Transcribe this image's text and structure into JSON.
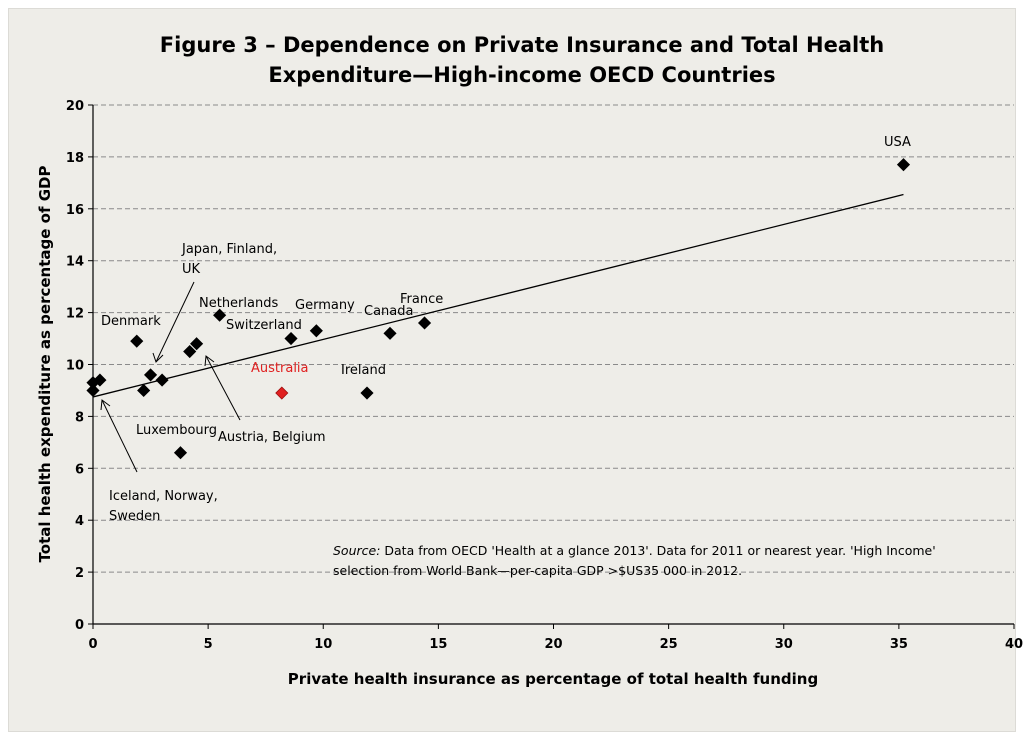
{
  "chart_data": {
    "type": "scatter",
    "title_line1": "Figure 3 – Dependence on Private Insurance and Total Health",
    "title_line2": "Expenditure—High-income OECD Countries",
    "xlabel": "Private health insurance as percentage of total health funding",
    "ylabel": "Total health expenditure as percentage of GDP",
    "xlim": [
      0,
      40
    ],
    "ylim": [
      0,
      20
    ],
    "x_ticks": [
      "0",
      "5",
      "10",
      "15",
      "20",
      "25",
      "30",
      "35",
      "40"
    ],
    "y_ticks": [
      "0",
      "2",
      "4",
      "6",
      "8",
      "10",
      "12",
      "14",
      "16",
      "18",
      "20"
    ],
    "grid": "horizontal dashed",
    "point_color": "#000000",
    "highlight_color": "#e02020",
    "points": [
      {
        "x": 35.2,
        "y": 17.7
      },
      {
        "x": 14.4,
        "y": 11.6
      },
      {
        "x": 12.9,
        "y": 11.2
      },
      {
        "x": 9.7,
        "y": 11.3
      },
      {
        "x": 8.6,
        "y": 11.0
      },
      {
        "x": 5.5,
        "y": 11.9
      },
      {
        "x": 4.5,
        "y": 10.8
      },
      {
        "x": 4.2,
        "y": 10.5
      },
      {
        "x": 1.9,
        "y": 10.9
      },
      {
        "x": 2.5,
        "y": 9.6
      },
      {
        "x": 3.0,
        "y": 9.4
      },
      {
        "x": 2.2,
        "y": 9.0
      },
      {
        "x": 0.0,
        "y": 9.0
      },
      {
        "x": 0.0,
        "y": 9.3
      },
      {
        "x": 0.3,
        "y": 9.4
      },
      {
        "x": 11.9,
        "y": 8.9
      },
      {
        "x": 3.8,
        "y": 6.6
      },
      {
        "x": 8.2,
        "y": 8.9,
        "highlight": true
      }
    ],
    "trendline": {
      "x1": 0,
      "y1": 8.75,
      "x2": 35.2,
      "y2": 16.55
    },
    "labels": {
      "usa": "USA",
      "france": "France",
      "canada": "Canada",
      "germany": "Germany",
      "netherlands": "Netherlands",
      "switzerland": "Switzerland",
      "denmark": "Denmark",
      "japan_1": "Japan, Finland,",
      "japan_2": "UK",
      "australia": "Australia",
      "ireland": "Ireland",
      "luxembourg": "Luxembourg",
      "austria": "Austria, Belgium",
      "iceland_1": "Iceland, Norway,",
      "iceland_2": "Sweden"
    },
    "source_italic": "Source:",
    "source_line1": " Data from OECD 'Health at a glance 2013'.  Data for 2011  or nearest year. 'High Income'",
    "source_line2": "selection from World Bank—per-capita GDP >$US35 000  in 2012."
  }
}
